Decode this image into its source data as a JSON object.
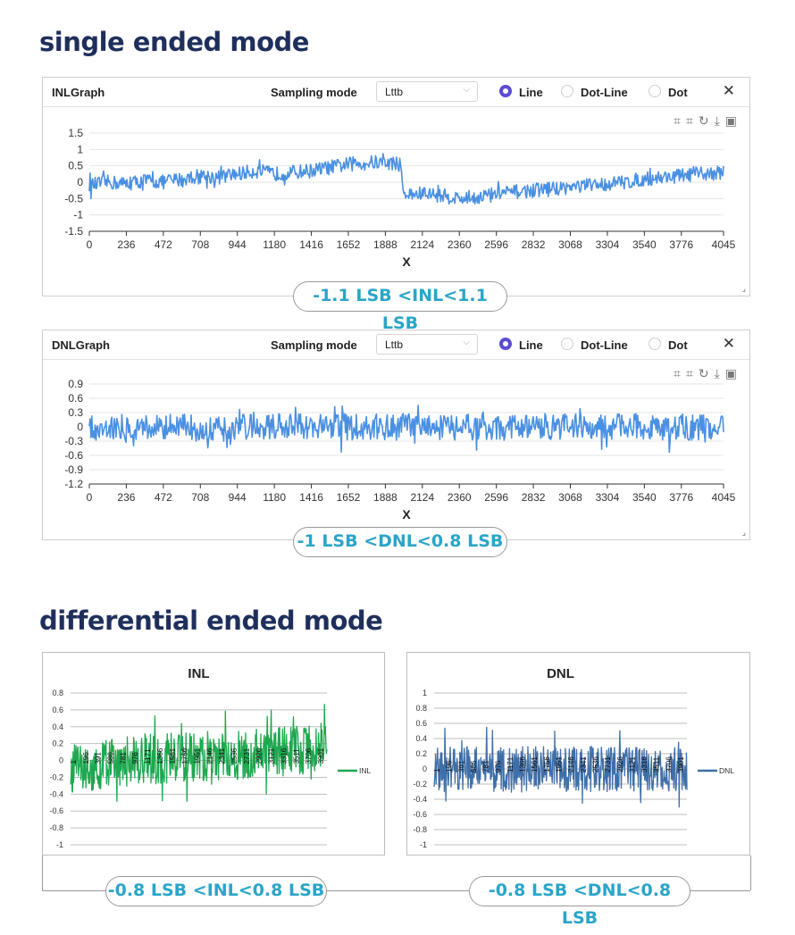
{
  "sections": {
    "single_title": "single ended mode",
    "differential_title": "differential ended mode"
  },
  "inl_panel": {
    "title": "INLGraph",
    "sampling_label": "Sampling mode",
    "sampling_value": "Lttb",
    "radio_line": "Line",
    "radio_dotline": "Dot-Line",
    "radio_dot": "Dot",
    "selected_radio": "Line",
    "close": "✕",
    "result": "-1.1 LSB <INL<1.1 LSB"
  },
  "dnl_panel": {
    "title": "DNLGraph",
    "sampling_label": "Sampling mode",
    "sampling_value": "Lttb",
    "radio_line": "Line",
    "radio_dotline": "Dot-Line",
    "radio_dot": "Dot",
    "selected_radio": "Line",
    "close": "✕",
    "result": "-1 LSB <DNL<0.8 LSB"
  },
  "diff_results": {
    "inl": "-0.8 LSB <INL<0.8 LSB",
    "dnl": "-0.8 LSB <DNL<0.8 LSB"
  },
  "colors": {
    "title": "#1f2f5c",
    "ui_line": "#4a90e2",
    "excel_inl": "#1ea84f",
    "excel_dnl": "#3f6fa8",
    "result_text": "#2aa5c8",
    "radio_accent": "#5b4bd6"
  },
  "chart_data": [
    {
      "id": "single-inl",
      "type": "line",
      "title": "",
      "xlabel": "X",
      "ylabel": "",
      "xlim": [
        0,
        4045
      ],
      "ylim": [
        -1.5,
        1.5
      ],
      "x_ticks": [
        0,
        236,
        472,
        708,
        944,
        1180,
        1416,
        1652,
        1888,
        2124,
        2360,
        2596,
        2832,
        3068,
        3304,
        3540,
        3776,
        4045
      ],
      "y_ticks": [
        1.5,
        1,
        0.5,
        0,
        -0.5,
        -1,
        -1.5
      ],
      "y_tick_labels": [
        "1.5",
        "1",
        "0.5",
        "0",
        "-0.5",
        "-1",
        "-1.5"
      ],
      "grid": "horizontal",
      "series": [
        {
          "x": [
            0,
            118,
            236,
            354,
            472,
            590,
            708,
            826,
            944,
            1062,
            1180,
            1298,
            1416,
            1534,
            1652,
            1770,
            1888,
            1980,
            2010,
            2124,
            2242,
            2360,
            2478,
            2596,
            2714,
            2832,
            2950,
            3068,
            3186,
            3304,
            3422,
            3540,
            3658,
            3776,
            3894,
            4045
          ],
          "values": [
            -0.1,
            0.0,
            -0.05,
            0.05,
            0.0,
            0.1,
            0.2,
            0.15,
            0.25,
            0.35,
            0.25,
            0.3,
            0.35,
            0.45,
            0.55,
            0.6,
            0.6,
            0.55,
            -0.4,
            -0.35,
            -0.4,
            -0.5,
            -0.45,
            -0.35,
            -0.3,
            -0.25,
            -0.2,
            -0.15,
            -0.1,
            -0.05,
            0.0,
            0.1,
            0.15,
            0.2,
            0.25,
            0.3
          ],
          "noise": 0.22
        }
      ]
    },
    {
      "id": "single-dnl",
      "type": "line",
      "title": "",
      "xlabel": "X",
      "ylabel": "",
      "xlim": [
        0,
        4045
      ],
      "ylim": [
        -1.2,
        0.9
      ],
      "x_ticks": [
        0,
        236,
        472,
        708,
        944,
        1180,
        1416,
        1652,
        1888,
        2124,
        2360,
        2596,
        2832,
        3068,
        3304,
        3540,
        3776,
        4045
      ],
      "y_ticks": [
        0.9,
        0.6,
        0.3,
        0,
        -0.3,
        -0.6,
        -0.9,
        -1.2
      ],
      "y_tick_labels": [
        "0.9",
        "0.6",
        "0.3",
        "0",
        "-0.3",
        "-0.6",
        "-0.9",
        "-1.2"
      ],
      "grid": "horizontal",
      "series": [
        {
          "x": [
            0,
            4045
          ],
          "values": [
            0,
            0
          ],
          "noise": 0.28
        }
      ]
    },
    {
      "id": "diff-inl",
      "type": "line",
      "title": "INL",
      "xlabel": "",
      "ylabel": "",
      "ylim": [
        -1,
        0.8
      ],
      "y_ticks": [
        0.8,
        0.6,
        0.4,
        0.2,
        0,
        -0.2,
        -0.4,
        -0.6,
        -0.8,
        -1
      ],
      "y_tick_labels": [
        "0.8",
        "0.6",
        "0.4",
        "0.2",
        "0",
        "-0.2",
        "-0.4",
        "-0.6",
        "-0.8",
        "-1"
      ],
      "x_ticks": [
        "1",
        "196",
        "391",
        "586",
        "781",
        "976",
        "1171",
        "1366",
        "1561",
        "1756",
        "1951",
        "2146",
        "2341",
        "2536",
        "2731",
        "2926",
        "3121",
        "3316",
        "3511",
        "3706",
        "3901"
      ],
      "x_tick_labels": [
        "1",
        "196",
        "391",
        "586",
        "781",
        "976",
        "1171",
        "1366",
        "1561",
        "1756",
        "1951",
        "2146",
        "2341",
        "2536",
        "2731",
        "2926",
        "3121",
        "3316",
        "3511",
        "3706",
        "3901"
      ],
      "legend": "INL",
      "legend_position": "right",
      "grid": "horizontal",
      "series": [
        {
          "name": "INL",
          "x": [
            1,
            1000,
            2000,
            3000,
            4000
          ],
          "values": [
            -0.1,
            0.0,
            0.05,
            0.1,
            0.15
          ],
          "noise": 0.3
        }
      ]
    },
    {
      "id": "diff-dnl",
      "type": "line",
      "title": "DNL",
      "xlabel": "",
      "ylabel": "",
      "ylim": [
        -1,
        1
      ],
      "y_ticks": [
        1,
        0.8,
        0.6,
        0.4,
        0.2,
        0,
        -0.2,
        -0.4,
        -0.6,
        -0.8,
        -1
      ],
      "y_tick_labels": [
        "1",
        "0.8",
        "0.6",
        "0.4",
        "0.2",
        "0",
        "-0.2",
        "-0.4",
        "-0.6",
        "-0.8",
        "-1"
      ],
      "x_ticks": [
        "1",
        "196",
        "391",
        "586",
        "781",
        "976",
        "1171",
        "1366",
        "1561",
        "1756",
        "1951",
        "2146",
        "2341",
        "2536",
        "2731",
        "2926",
        "3121",
        "3316",
        "3511",
        "3706",
        "3901"
      ],
      "x_tick_labels": [
        "1",
        "196",
        "391",
        "586",
        "781",
        "976",
        "1171",
        "1366",
        "1561",
        "1756",
        "1951",
        "2146",
        "2341",
        "2536",
        "2731",
        "2926",
        "3121",
        "3316",
        "3511",
        "3706",
        "3901"
      ],
      "legend": "DNL",
      "legend_position": "right",
      "grid": "horizontal",
      "series": [
        {
          "name": "DNL",
          "x": [
            1,
            4000
          ],
          "values": [
            0,
            0
          ],
          "noise": 0.3
        }
      ]
    }
  ]
}
